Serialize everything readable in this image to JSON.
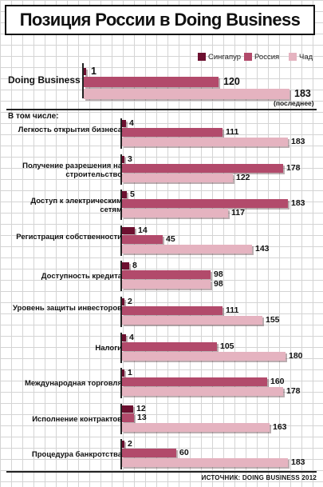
{
  "chart_data": {
    "type": "bar",
    "title": "Позиция России в Doing Business",
    "legend_position": "top-right",
    "series": [
      {
        "name": "Сингапур",
        "color": "#6d1030"
      },
      {
        "name": "Россия",
        "color": "#b24a6b"
      },
      {
        "name": "Чад",
        "color": "#e5b3c0"
      }
    ],
    "overall": {
      "label": "Doing Business",
      "values": [
        1,
        120,
        183
      ],
      "note": "(последнее)"
    },
    "section_label": "В том числе:",
    "categories": [
      {
        "label": "Легкость открытия бизнеса",
        "values": [
          4,
          111,
          183
        ]
      },
      {
        "label": "Получение разрешения на строительство",
        "values": [
          3,
          178,
          122
        ]
      },
      {
        "label": "Доступ к электрическим сетям",
        "values": [
          5,
          183,
          117
        ]
      },
      {
        "label": "Регистрация собственности",
        "values": [
          14,
          45,
          143
        ]
      },
      {
        "label": "Доступность кредита",
        "values": [
          8,
          98,
          98
        ]
      },
      {
        "label": "Уровень защиты инвесторов",
        "values": [
          2,
          111,
          155
        ]
      },
      {
        "label": "Налоги",
        "values": [
          4,
          105,
          180
        ]
      },
      {
        "label": "Международная торговля",
        "values": [
          1,
          160,
          178
        ]
      },
      {
        "label": "Исполнение контрактов",
        "values": [
          12,
          13,
          163
        ]
      },
      {
        "label": "Процедура банкротства",
        "values": [
          2,
          60,
          183
        ]
      }
    ],
    "xlim": [
      0,
      183
    ],
    "source": "ИСТОЧНИК: DOING BUSINESS 2012"
  }
}
